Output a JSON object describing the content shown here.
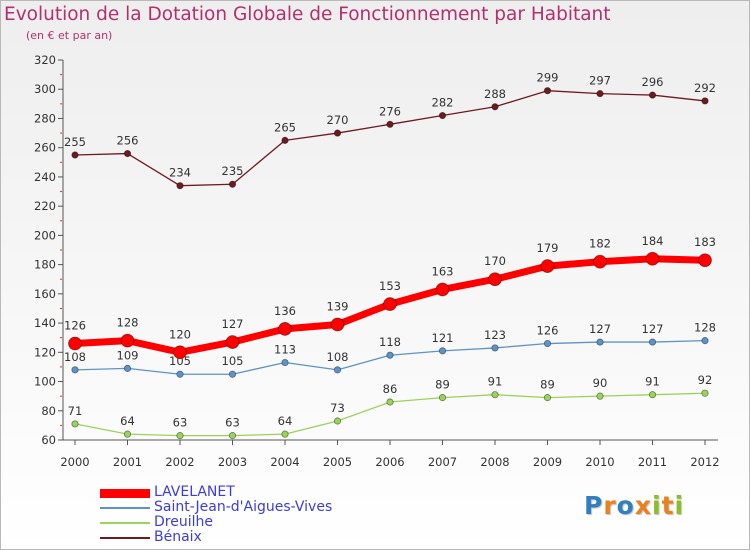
{
  "header": {
    "title": "Evolution de la Dotation Globale de Fonctionnement par Habitant",
    "subtitle": "(en € et par an)"
  },
  "logo": {
    "text": "Proxiti",
    "letter_colors": [
      "#2f7fc1",
      "#e8821e",
      "#2f7fc1",
      "#e8821e",
      "#8cbf26",
      "#e8821e",
      "#8cbf26"
    ]
  },
  "chart_data": {
    "type": "line",
    "title": "Evolution de la Dotation Globale de Fonctionnement par Habitant",
    "subtitle": "(en € et par an)",
    "categories": [
      "2000",
      "2001",
      "2002",
      "2003",
      "2004",
      "2005",
      "2006",
      "2007",
      "2008",
      "2009",
      "2010",
      "2011",
      "2012"
    ],
    "ylim": [
      60,
      320
    ],
    "yticks": [
      60,
      80,
      100,
      120,
      140,
      160,
      180,
      200,
      220,
      240,
      260,
      280,
      300,
      320
    ],
    "grid": false,
    "legend_position": "bottom-left",
    "series": [
      {
        "name": "Bénaix",
        "color": "#6e1a1f",
        "values": [
          255,
          256,
          234,
          235,
          265,
          270,
          276,
          282,
          288,
          299,
          297,
          296,
          292
        ]
      },
      {
        "name": "Dreuilhe",
        "color": "#9ad35a",
        "values": [
          71,
          64,
          63,
          63,
          64,
          73,
          86,
          89,
          91,
          89,
          90,
          91,
          92
        ]
      },
      {
        "name": "Saint-Jean-d'Aigues-Vives",
        "color": "#5d93c8",
        "values": [
          108,
          109,
          105,
          105,
          113,
          108,
          118,
          121,
          123,
          126,
          127,
          127,
          128
        ]
      },
      {
        "name": "LAVELANET",
        "color": "#ff0000",
        "values": [
          126,
          128,
          120,
          127,
          136,
          139,
          153,
          163,
          170,
          179,
          182,
          184,
          183
        ]
      }
    ],
    "legend_order": [
      "LAVELANET",
      "Saint-Jean-d'Aigues-Vives",
      "Dreuilhe",
      "Bénaix"
    ]
  }
}
